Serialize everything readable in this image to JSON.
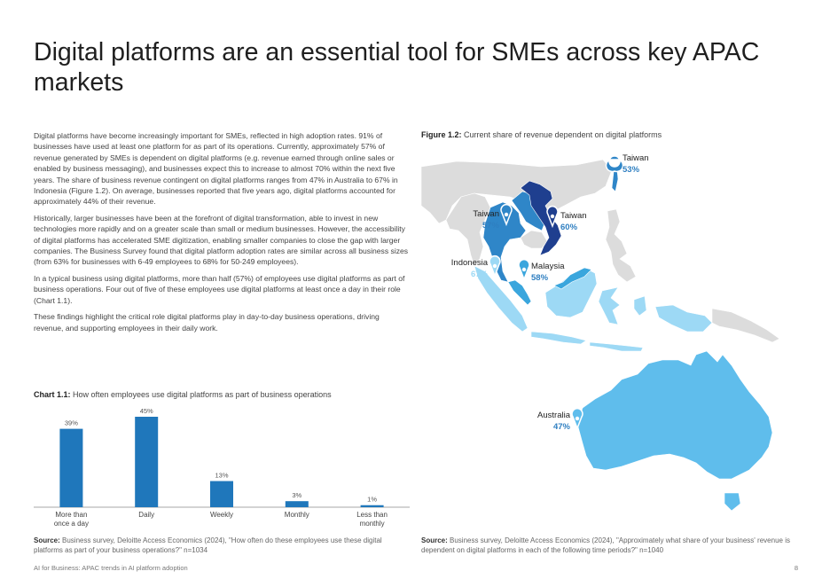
{
  "page": {
    "title": "Digital platforms are an essential tool for SMEs across key APAC markets",
    "paragraphs": [
      "Digital platforms have become increasingly important for SMEs, reflected in high adoption rates. 91% of businesses have used at least one platform for as part of its operations. Currently, approximately 57% of revenue generated by SMEs is dependent on digital platforms (e.g. revenue earned through online sales or enabled by business messaging), and businesses expect this to increase to almost 70% within the next five years. The share of business revenue contingent on digital platforms ranges from 47% in Australia to 67% in Indonesia (Figure 1.2). On average, businesses reported that five years ago, digital platforms accounted for approximately 44% of their revenue.",
      "Historically, larger businesses have been at the forefront of digital transformation, able to invest in new technologies more rapidly and on a greater scale than small or medium businesses. However, the accessibility of digital platforms has accelerated SME digitization, enabling smaller companies to close the gap with larger companies. The Business Survey found that digital platform adoption rates are similar across all business sizes (from 63% for businesses with 6-49 employees to 68% for 50-249 employees).",
      "In a typical business using digital platforms, more than half (57%) of employees use digital platforms as part of business operations. Four out of five of these employees use digital platforms at least once a day in their role (Chart 1.1).",
      "These findings highlight the critical role digital platforms play in day-to-day business operations, driving revenue, and supporting employees in their daily work."
    ],
    "footer_left": "AI for Business: APAC trends in AI platform adoption",
    "page_number": "8"
  },
  "chart_caption": {
    "label": "Chart 1.1:",
    "text": " How often employees use digital platforms as part of business operations"
  },
  "chart_source": {
    "label": "Source:",
    "text": " Business survey, Deloitte Access Economics (2024), \"How often do these employees use these digital platforms as part of your business operations?\" n=1034"
  },
  "figure_caption": {
    "label": "Figure 1.2:",
    "text": " Current share of revenue dependent on digital platforms"
  },
  "figure_source": {
    "label": "Source:",
    "text": " Business survey, Deloitte Access Economics (2024), \"Approximately what share of your business' revenue is dependent on digital platforms in each of the following time periods?\" n=1040"
  },
  "chart_data": {
    "type": "bar",
    "categories": [
      [
        "More than",
        "once a day"
      ],
      [
        "Daily"
      ],
      [
        "Weekly"
      ],
      [
        "Monthly"
      ],
      [
        "Less than",
        "monthly"
      ]
    ],
    "values": [
      39,
      45,
      13,
      3,
      1
    ],
    "value_labels": [
      "39%",
      "45%",
      "13%",
      "3%",
      "1%"
    ],
    "ylim": [
      0,
      45
    ],
    "bar_color": "#1f77bb",
    "grid": false
  },
  "map": {
    "colors": {
      "land": "#dcdcdc",
      "light_blue": "#9dd9f5",
      "mid_blue": "#3aa6dd",
      "blue": "#2f86c8",
      "dark_blue": "#1f3f8f",
      "australia": "#5fbdec",
      "pin_value": "#2f7fc1"
    },
    "markers": [
      {
        "label": "Taiwan",
        "value": "53%"
      },
      {
        "label": "Taiwan",
        "value": "57%"
      },
      {
        "label": "Taiwan",
        "value": "60%"
      },
      {
        "label": "Indonesia",
        "value": "67%"
      },
      {
        "label": "Malaysia",
        "value": "58%"
      },
      {
        "label": "Australia",
        "value": "47%"
      }
    ]
  }
}
